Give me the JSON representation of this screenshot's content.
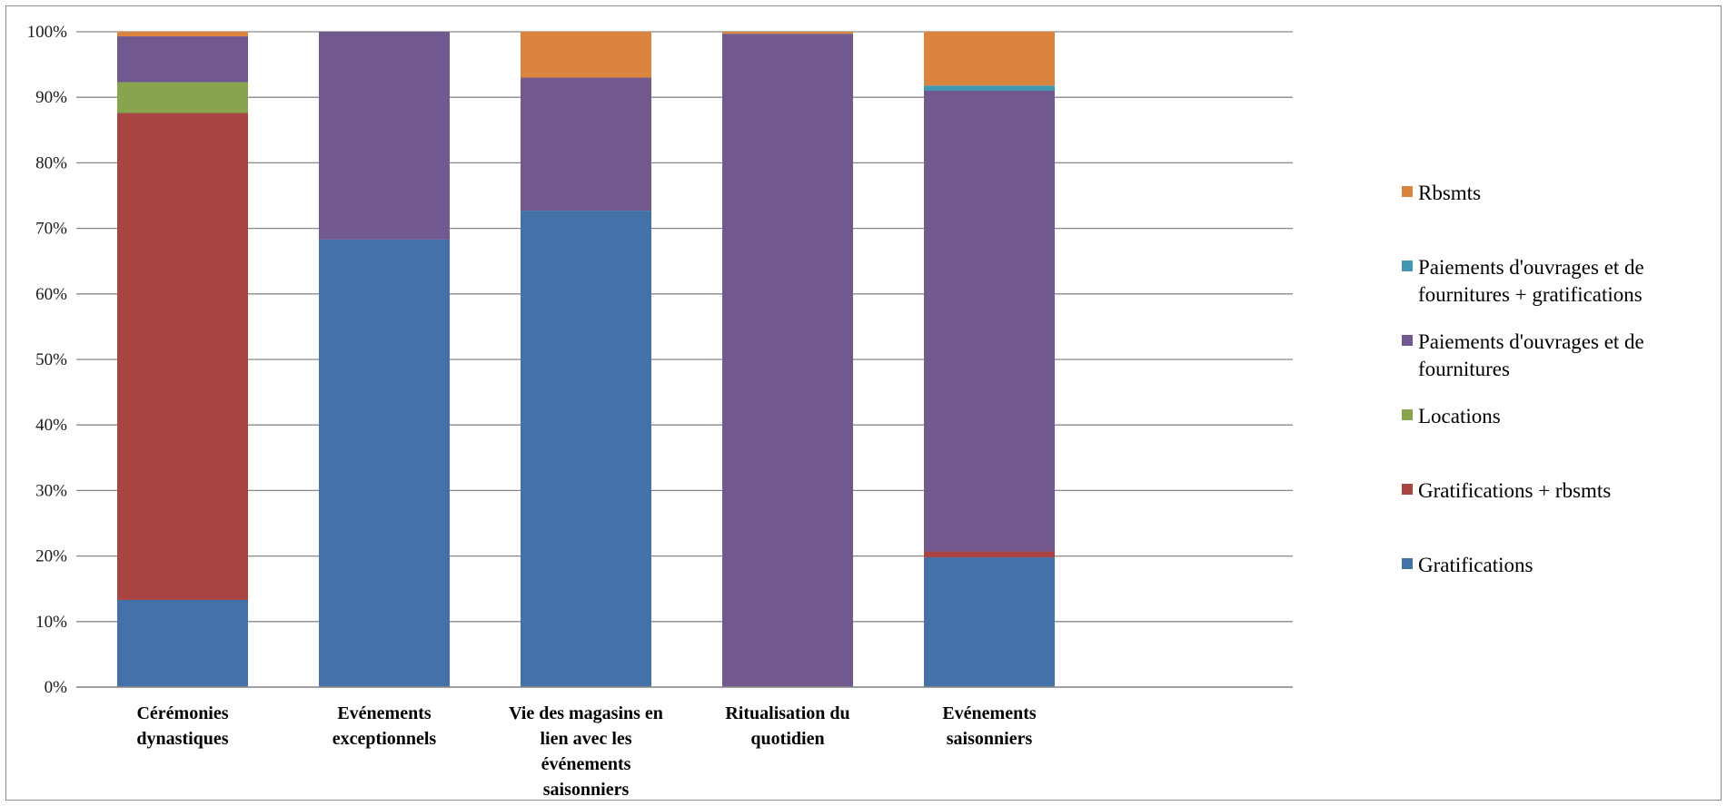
{
  "chart_data": {
    "type": "bar",
    "stacked": "percent",
    "categories": [
      [
        "Cérémonies",
        "dynastiques"
      ],
      [
        "Evénements",
        "exceptionnels"
      ],
      [
        "Vie des magasins en",
        "lien avec les",
        "événements",
        "saisonniers"
      ],
      [
        "Ritualisation du",
        "quotidien"
      ],
      [
        "Evénements",
        "saisonniers"
      ]
    ],
    "series": [
      {
        "name": "Gratifications",
        "color": "#4472a8",
        "values": [
          13.3,
          68.3,
          72.7,
          0.0,
          19.8
        ]
      },
      {
        "name": "Gratifications + rbsmts",
        "color": "#a84442",
        "values": [
          74.3,
          0.0,
          0.0,
          0.0,
          0.9
        ]
      },
      {
        "name": "Locations",
        "color": "#88a54d",
        "values": [
          4.7,
          0.0,
          0.0,
          0.0,
          0.0
        ]
      },
      {
        "name": "Paiements d'ouvrages et de fournitures",
        "label_lines": [
          "Paiements d'ouvrages et de",
          "fournitures"
        ],
        "color": "#71588f",
        "values": [
          7.0,
          31.7,
          20.3,
          99.7,
          70.3
        ]
      },
      {
        "name": "Paiements d'ouvrages et de fournitures + gratifications",
        "label_lines": [
          "Paiements d'ouvrages et de",
          "fournitures + gratifications"
        ],
        "color": "#4198af",
        "values": [
          0.0,
          0.0,
          0.0,
          0.0,
          0.8
        ]
      },
      {
        "name": "Rbsmts",
        "color": "#db843d",
        "values": [
          0.7,
          0.0,
          7.0,
          0.3,
          8.2
        ]
      }
    ],
    "ylim": [
      0,
      100
    ],
    "yticks": [
      "0%",
      "10%",
      "20%",
      "30%",
      "40%",
      "50%",
      "60%",
      "70%",
      "80%",
      "90%",
      "100%"
    ],
    "grid": true,
    "legend_position": "right",
    "legend_order": [
      "Rbsmts",
      "Paiements d'ouvrages et de fournitures + gratifications",
      "Paiements d'ouvrages et de fournitures",
      "Locations",
      "Gratifications + rbsmts",
      "Gratifications"
    ],
    "title": "",
    "xlabel": "",
    "ylabel": ""
  }
}
